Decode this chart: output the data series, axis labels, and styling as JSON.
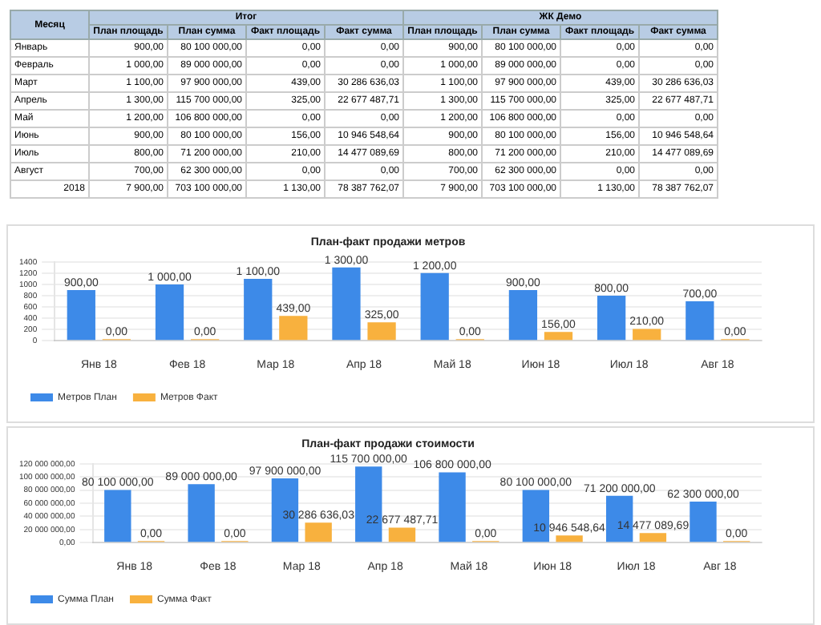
{
  "chart_data": [
    {
      "type": "other",
      "categories": [
        "Месяц",
        "План площадь",
        "План сумма",
        "Факт площадь",
        "Факт сумма",
        "План площадь",
        "План сумма",
        "Факт площадь",
        "Факт сумма"
      ],
      "annotations": [
        "Итог",
        "ЖК Демо",
        "Январь",
        "900,00",
        "80 100 000,00",
        "0,00",
        "0,00",
        "900,00",
        "80 100 000,00",
        "0,00",
        "0,00",
        "Февраль",
        "1 000,00",
        "89 000 000,00",
        "0,00",
        "0,00",
        "1 000,00",
        "89 000 000,00",
        "0,00",
        "0,00",
        "Март",
        "1 100,00",
        "97 900 000,00",
        "439,00",
        "30 286 636,03",
        "1 100,00",
        "97 900 000,00",
        "439,00",
        "30 286 636,03",
        "Апрель",
        "1 300,00",
        "115 700 000,00",
        "325,00",
        "22 677 487,71",
        "1 300,00",
        "115 700 000,00",
        "325,00",
        "22 677 487,71",
        "Май",
        "1 200,00",
        "106 800 000,00",
        "0,00",
        "0,00",
        "1 200,00",
        "106 800 000,00",
        "0,00",
        "0,00",
        "Июнь",
        "900,00",
        "80 100 000,00",
        "156,00",
        "10 946 548,64",
        "900,00",
        "80 100 000,00",
        "156,00",
        "10 946 548,64",
        "Июль",
        "800,00",
        "71 200 000,00",
        "210,00",
        "14 477 089,69",
        "800,00",
        "71 200 000,00",
        "210,00",
        "14 477 089,69",
        "Август",
        "700,00",
        "62 300 000,00",
        "0,00",
        "0,00",
        "700,00",
        "62 300 000,00",
        "0,00",
        "0,00",
        "2018",
        "7 900,00",
        "703 100 000,00",
        "1 130,00",
        "78 387 762,07",
        "7 900,00",
        "703 100 000,00",
        "1 130,00",
        "78 387 762,07"
      ]
    },
    {
      "type": "bar",
      "title": "План-факт продажи метров",
      "categories": [
        "Янв 18",
        "Фев 18",
        "Мар 18",
        "Апр 18",
        "Май 18",
        "Июн 18",
        "Июл 18",
        "Авг 18"
      ],
      "series": [
        {
          "name": "Метров План",
          "color": "#3d8ae8",
          "values": [
            900,
            1000,
            1100,
            1300,
            1200,
            900,
            800,
            700
          ],
          "value_labels": [
            "900,00",
            "1 000,00",
            "1 100,00",
            "1 300,00",
            "1 200,00",
            "900,00",
            "800,00",
            "700,00"
          ]
        },
        {
          "name": "Метров Факт",
          "color": "#f8b13e",
          "values": [
            0,
            0,
            439,
            325,
            0,
            156,
            210,
            0
          ],
          "value_labels": [
            "0,00",
            "0,00",
            "439,00",
            "325,00",
            "0,00",
            "156,00",
            "210,00",
            "0,00"
          ]
        }
      ],
      "ylim": [
        0,
        1400
      ],
      "yticks": [
        0,
        200,
        400,
        600,
        800,
        1000,
        1200,
        1400
      ],
      "grid": "y",
      "legend": "bottom left"
    },
    {
      "type": "bar",
      "title": "План-факт продажи стоимости",
      "categories": [
        "Янв 18",
        "Фев 18",
        "Мар 18",
        "Апр 18",
        "Май 18",
        "Июн 18",
        "Июл 18",
        "Авг 18"
      ],
      "series": [
        {
          "name": "Сумма План",
          "color": "#3d8ae8",
          "values": [
            80100000,
            89000000,
            97900000,
            115700000,
            106800000,
            80100000,
            71200000,
            62300000
          ],
          "value_labels": [
            "80 100 000,00",
            "89 000 000,00",
            "97 900 000,00",
            "115 700 000,00",
            "106 800 000,00",
            "80 100 000,00",
            "71 200 000,00",
            "62 300 000,00"
          ]
        },
        {
          "name": "Сумма Факт",
          "color": "#f8b13e",
          "values": [
            0,
            0,
            30286636.03,
            22677487.71,
            0,
            10946548.64,
            14477089.69,
            0
          ],
          "value_labels": [
            "0,00",
            "0,00",
            "30 286 636,03",
            "22 677 487,71",
            "0,00",
            "10 946 548,64",
            "14 477 089,69",
            "0,00"
          ]
        }
      ],
      "ylim": [
        0,
        120000000
      ],
      "yticks": [
        {
          "value": 0,
          "label": "0,00"
        },
        {
          "value": 20000000,
          "label": "20 000 000,00"
        },
        {
          "value": 40000000,
          "label": "40 000 000,00"
        },
        {
          "value": 60000000,
          "label": "60 000 000,00"
        },
        {
          "value": 80000000,
          "label": "80 000 000,00"
        },
        {
          "value": 100000000,
          "label": "100 000 000,00"
        },
        {
          "value": 120000000,
          "label": "120 000 000,00"
        }
      ],
      "grid": "y",
      "legend": "bottom left"
    }
  ]
}
